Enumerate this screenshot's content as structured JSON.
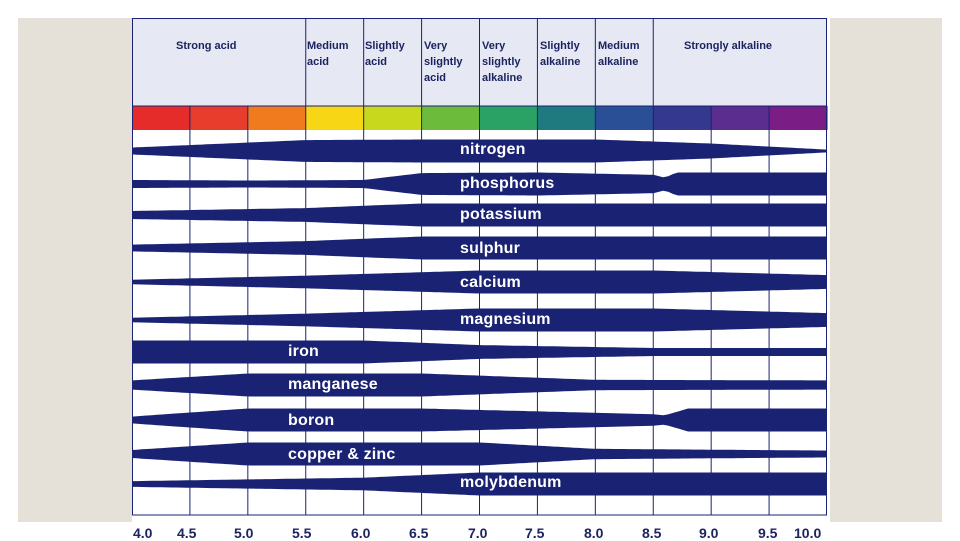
{
  "chart_data": {
    "type": "area",
    "x_axis": {
      "range": [
        4.0,
        10.0
      ],
      "ticks": [
        "4.0",
        "4.5",
        "5.0",
        "5.5",
        "6.0",
        "6.5",
        "7.0",
        "7.5",
        "8.0",
        "8.5",
        "9.0",
        "9.5",
        "10.0"
      ]
    },
    "zones": [
      {
        "label": "Strong acid",
        "from": 4.0,
        "to": 5.5
      },
      {
        "label": "Medium acid",
        "from": 5.5,
        "to": 6.0
      },
      {
        "label": "Slightly acid",
        "from": 6.0,
        "to": 6.5
      },
      {
        "label": "Very slightly acid",
        "from": 6.5,
        "to": 7.0
      },
      {
        "label": "Very slightly alkaline",
        "from": 7.0,
        "to": 7.5
      },
      {
        "label": "Slightly alkaline",
        "from": 7.5,
        "to": 8.0
      },
      {
        "label": "Medium alkaline",
        "from": 8.0,
        "to": 8.5
      },
      {
        "label": "Strongly alkaline",
        "from": 8.5,
        "to": 10.0
      }
    ],
    "color_band": [
      "#e52c2a",
      "#e83d2c",
      "#f07a1e",
      "#f6d615",
      "#c8d81c",
      "#6cbb3a",
      "#2aa266",
      "#1f7a80",
      "#2b4f97",
      "#34388e",
      "#5b2d8e",
      "#7a1e86"
    ],
    "nutrients": [
      {
        "name": "nitrogen",
        "availability": [
          [
            4.0,
            0.3
          ],
          [
            5.5,
            0.95
          ],
          [
            6.5,
            1.0
          ],
          [
            8.0,
            1.0
          ],
          [
            9.0,
            0.65
          ],
          [
            10.0,
            0.12
          ]
        ]
      },
      {
        "name": "phosphorus",
        "availability": [
          [
            4.0,
            0.35
          ],
          [
            5.0,
            0.3
          ],
          [
            6.0,
            0.35
          ],
          [
            6.5,
            0.95
          ],
          [
            7.5,
            1.0
          ],
          [
            8.5,
            0.8
          ],
          [
            8.6,
            0.55
          ],
          [
            8.7,
            1.0
          ],
          [
            10.0,
            1.0
          ]
        ]
      },
      {
        "name": "potassium",
        "availability": [
          [
            4.0,
            0.35
          ],
          [
            5.5,
            0.6
          ],
          [
            6.5,
            1.0
          ],
          [
            10.0,
            1.0
          ]
        ]
      },
      {
        "name": "sulphur",
        "availability": [
          [
            4.0,
            0.3
          ],
          [
            5.5,
            0.6
          ],
          [
            6.5,
            1.0
          ],
          [
            10.0,
            1.0
          ]
        ]
      },
      {
        "name": "calcium",
        "availability": [
          [
            4.0,
            0.2
          ],
          [
            5.5,
            0.55
          ],
          [
            7.0,
            1.0
          ],
          [
            8.5,
            1.0
          ],
          [
            10.0,
            0.6
          ]
        ]
      },
      {
        "name": "magnesium",
        "availability": [
          [
            4.0,
            0.2
          ],
          [
            5.5,
            0.55
          ],
          [
            7.0,
            1.0
          ],
          [
            8.5,
            1.0
          ],
          [
            10.0,
            0.6
          ]
        ]
      },
      {
        "name": "iron",
        "availability": [
          [
            4.0,
            1.0
          ],
          [
            6.0,
            1.0
          ],
          [
            7.0,
            0.6
          ],
          [
            8.5,
            0.35
          ],
          [
            10.0,
            0.35
          ]
        ]
      },
      {
        "name": "manganese",
        "availability": [
          [
            4.0,
            0.4
          ],
          [
            5.0,
            1.0
          ],
          [
            6.5,
            1.0
          ],
          [
            8.0,
            0.45
          ],
          [
            10.0,
            0.4
          ]
        ]
      },
      {
        "name": "boron",
        "availability": [
          [
            4.0,
            0.3
          ],
          [
            5.0,
            1.0
          ],
          [
            6.5,
            1.0
          ],
          [
            8.5,
            0.5
          ],
          [
            8.6,
            0.4
          ],
          [
            8.8,
            1.0
          ],
          [
            10.0,
            1.0
          ]
        ]
      },
      {
        "name": "copper & zinc",
        "availability": [
          [
            4.0,
            0.35
          ],
          [
            5.0,
            1.0
          ],
          [
            7.0,
            1.0
          ],
          [
            8.0,
            0.45
          ],
          [
            10.0,
            0.3
          ]
        ]
      },
      {
        "name": "molybdenum",
        "availability": [
          [
            4.0,
            0.25
          ],
          [
            6.0,
            0.55
          ],
          [
            7.0,
            1.0
          ],
          [
            10.0,
            1.0
          ]
        ]
      }
    ]
  }
}
